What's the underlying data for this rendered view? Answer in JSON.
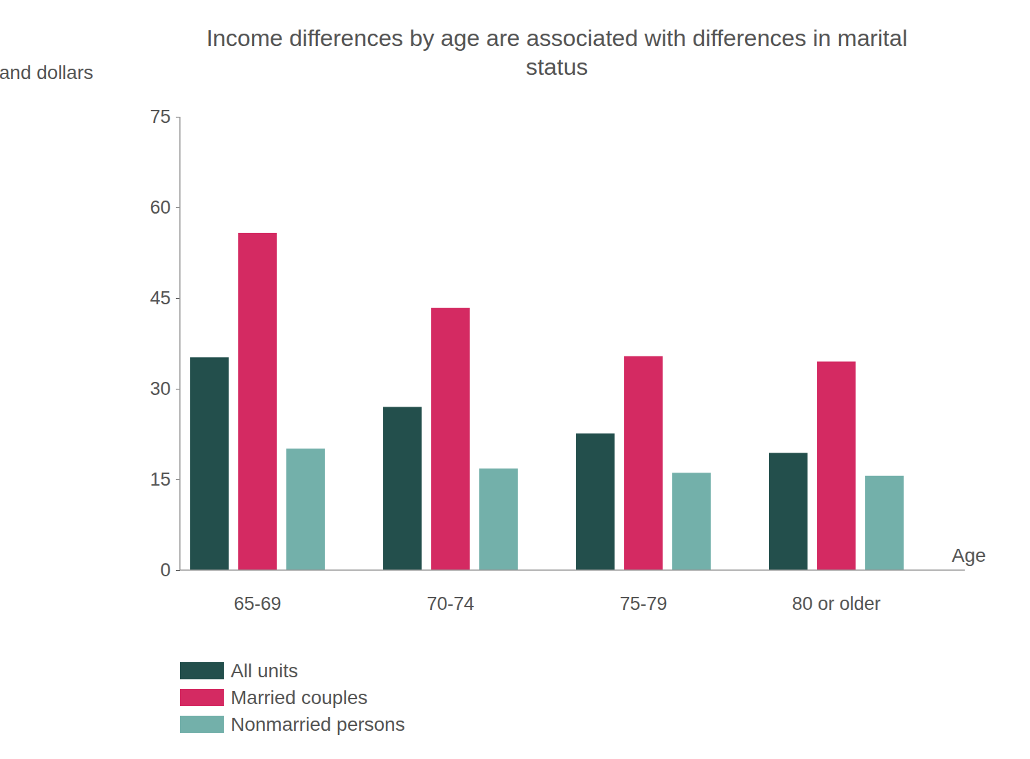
{
  "chart_data": {
    "type": "bar",
    "title": "Income differences by age are associated with differences in marital status",
    "ylabel": "thousand dollars",
    "xlabel": "Age",
    "categories": [
      "65-69",
      "70-74",
      "75-79",
      "80 or older"
    ],
    "series": [
      {
        "name": "All units",
        "color": "#234f4c",
        "values": [
          35.2,
          27.0,
          22.6,
          19.4
        ]
      },
      {
        "name": "Married couples",
        "color": "#d42a62",
        "values": [
          55.8,
          43.4,
          35.4,
          34.5
        ]
      },
      {
        "name": "Nonmarried persons",
        "color": "#73b0aa",
        "values": [
          20.1,
          16.8,
          16.1,
          15.6
        ]
      }
    ],
    "ylim": [
      0,
      75
    ],
    "yticks": [
      0,
      15,
      30,
      45,
      60,
      75
    ],
    "grid": false,
    "legend": "bottom-left"
  }
}
